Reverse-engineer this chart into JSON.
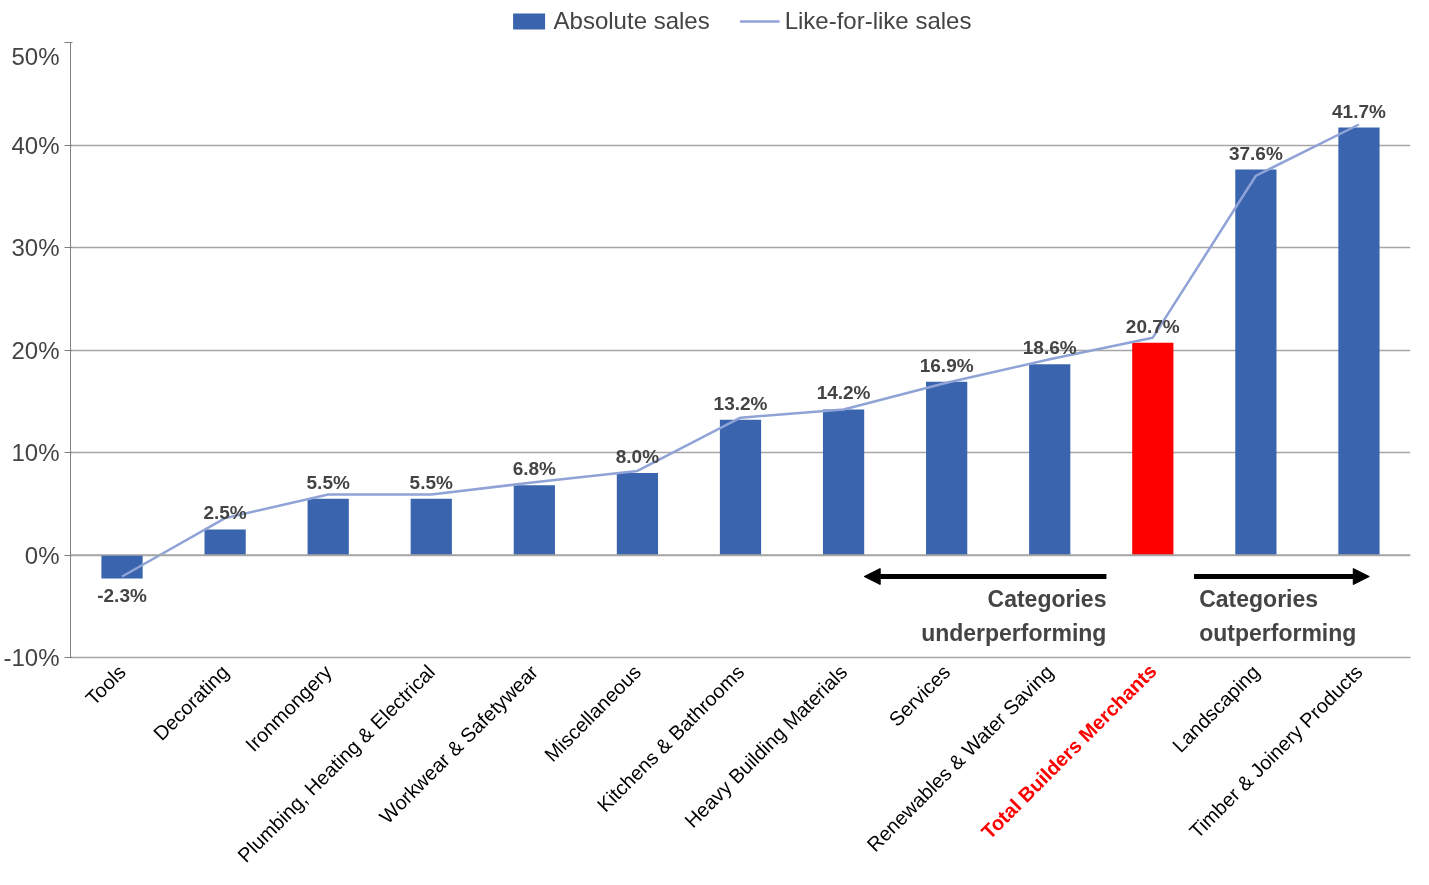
{
  "chart_data": {
    "type": "bar",
    "categories": [
      "Tools",
      "Decorating",
      "Ironmongery",
      "Plumbing, Heating & Electrical",
      "Workwear & Safetywear",
      "Miscellaneous",
      "Kitchens & Bathrooms",
      "Heavy Building Materials",
      "Services",
      "Renewables & Water Saving",
      "Total Builders Merchants",
      "Landscaping",
      "Timber & Joinery Products"
    ],
    "series": [
      {
        "name": "Absolute sales",
        "color": "#3a64ad",
        "colors": [
          "#3a64ad",
          "#3a64ad",
          "#3a64ad",
          "#3a64ad",
          "#3a64ad",
          "#3a64ad",
          "#3a64ad",
          "#3a64ad",
          "#3a64ad",
          "#3a64ad",
          "#ff0000",
          "#3a64ad",
          "#3a64ad"
        ],
        "values": [
          -2.3,
          2.5,
          5.5,
          5.5,
          6.8,
          8.0,
          13.2,
          14.2,
          16.9,
          18.6,
          20.7,
          37.6,
          41.7
        ],
        "value_labels": [
          "-2.3%",
          "2.5%",
          "5.5%",
          "5.5%",
          "6.8%",
          "8.0%",
          "13.2%",
          "14.2%",
          "16.9%",
          "18.6%",
          "20.7%",
          "37.6%",
          "41.7%"
        ]
      },
      {
        "name": "Like-for-like sales",
        "type": "line",
        "color": "#8fa3d6",
        "values": [
          -2.1,
          3.6,
          5.9,
          5.9,
          7.1,
          8.2,
          13.4,
          14.2,
          16.8,
          19.1,
          21.2,
          37.0,
          42.0
        ]
      }
    ],
    "ylim": [
      -10,
      50
    ],
    "yticks": [
      {
        "value": -10,
        "label": "-10%"
      },
      {
        "value": 0,
        "label": "0%"
      },
      {
        "value": 10,
        "label": "10%"
      },
      {
        "value": 20,
        "label": "20%"
      },
      {
        "value": 30,
        "label": "30%"
      },
      {
        "value": 40,
        "label": "40%"
      },
      {
        "value": 50,
        "label": "50%"
      }
    ],
    "annotations": [
      "Categories\nunderperforming",
      "Categories\noutperforming"
    ],
    "grid": "y",
    "legend": "top"
  }
}
